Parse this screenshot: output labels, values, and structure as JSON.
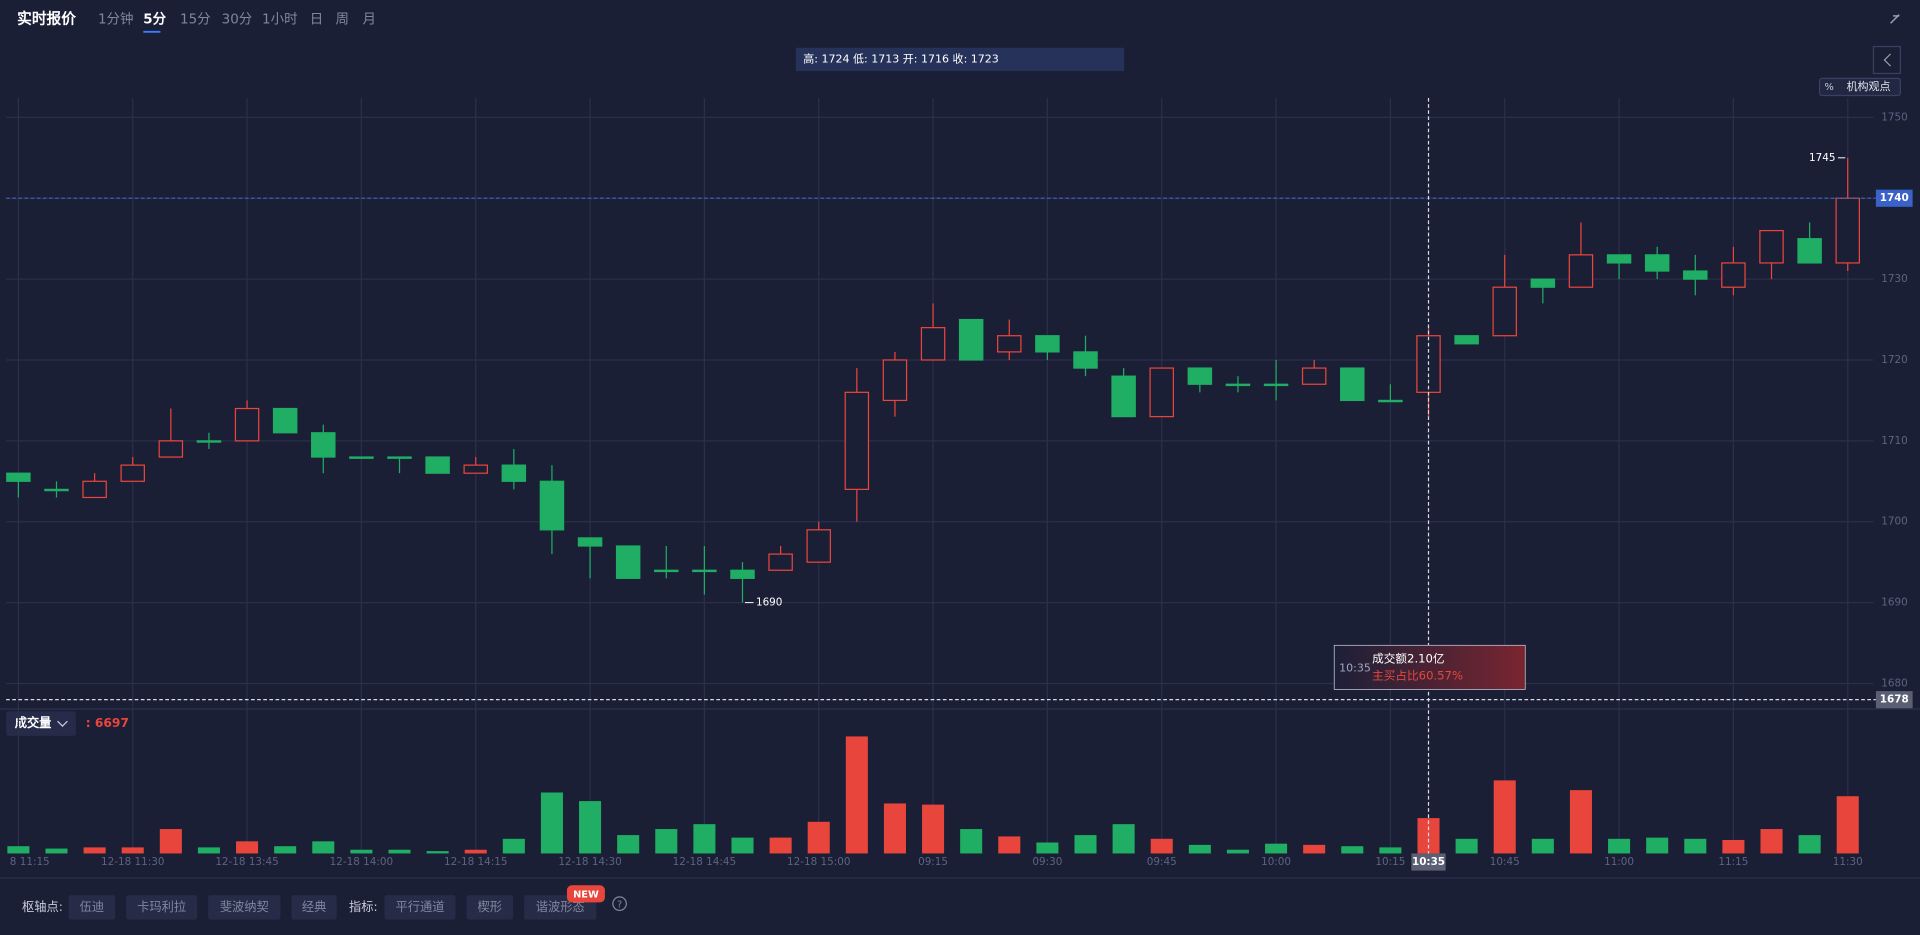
{
  "toolbar": {
    "title": "实时报价",
    "periods": [
      "1分钟",
      "5分",
      "15分",
      "30分",
      "1小时",
      "日",
      "周",
      "月"
    ],
    "active_period": 1
  },
  "ohlc_bar": "高: 1724 低: 1713 开: 1716 收: 1723",
  "opinion_button": {
    "icon": "%",
    "label": "机构观点"
  },
  "volume_header": {
    "title": "成交量",
    "value": ": 6697"
  },
  "volume_tooltip": {
    "amount": "成交额2.10亿",
    "buy_ratio": "主买占比60.57%"
  },
  "bottom_bar": {
    "pivot_label": "枢轴点:",
    "pivots": [
      "伍迪",
      "卡玛利拉",
      "斐波纳契",
      "经典"
    ],
    "indicator_label": "指标:",
    "indicators": [
      "平行通道",
      "楔形",
      "谐波形态"
    ],
    "badge": "NEW",
    "help": "?"
  },
  "chart_data": {
    "type": "candlestick",
    "categories": [
      "8 11:15",
      null,
      null,
      "12-18 11:30",
      null,
      null,
      "12-18 13:45",
      null,
      null,
      "12-18 14:00",
      null,
      null,
      "12-18 14:15",
      null,
      null,
      "12-18 14:30",
      null,
      null,
      "12-18 14:45",
      null,
      null,
      "12-18 15:00",
      null,
      null,
      "09:15",
      null,
      null,
      "09:30",
      null,
      null,
      "09:45",
      null,
      null,
      "10:00",
      null,
      null,
      "10:15",
      "10:35",
      null,
      "10:45",
      null,
      null,
      "11:00",
      null,
      null,
      "11:15",
      null,
      null,
      "11:30"
    ],
    "open": [
      1706,
      1704,
      1703,
      1705,
      1708,
      1710,
      1710,
      1714,
      1711,
      1708,
      1708,
      1708,
      1706,
      1707,
      1705,
      1698,
      1697,
      1694,
      1694,
      1694,
      1694,
      1695,
      1704,
      1715,
      1720,
      1725,
      1721,
      1723,
      1721,
      1718,
      1713,
      1719,
      1717,
      1717,
      1717,
      1719,
      1715,
      1716,
      1723,
      1723,
      1730,
      1729,
      1733,
      1733,
      1731,
      1729,
      1732,
      1735,
      1732
    ],
    "high": [
      1706,
      1705,
      1706,
      1708,
      1714,
      1711,
      1715,
      1714,
      1712,
      1708,
      1708,
      1708,
      1708,
      1709,
      1707,
      1698,
      1697,
      1697,
      1697,
      1695,
      1697,
      1700,
      1719,
      1721,
      1727,
      1725,
      1725,
      1723,
      1723,
      1719,
      1719,
      1719,
      1718,
      1720,
      1720,
      1719,
      1717,
      1724,
      1723,
      1733,
      1730,
      1737,
      1733,
      1734,
      1733,
      1734,
      1736,
      1737,
      1745
    ],
    "low": [
      1703,
      1703,
      1703,
      1705,
      1708,
      1709,
      1710,
      1711,
      1706,
      1708,
      1706,
      1706,
      1706,
      1704,
      1696,
      1693,
      1693,
      1693,
      1691,
      1690,
      1694,
      1695,
      1700,
      1713,
      1720,
      1720,
      1720,
      1720,
      1718,
      1713,
      1713,
      1716,
      1716,
      1715,
      1717,
      1715,
      1715,
      1713,
      1722,
      1723,
      1727,
      1729,
      1730,
      1730,
      1728,
      1728,
      1730,
      1732,
      1731
    ],
    "close": [
      1705,
      1704,
      1705,
      1707,
      1710,
      1710,
      1714,
      1711,
      1708,
      1708,
      1708,
      1706,
      1707,
      1705,
      1699,
      1697,
      1693,
      1694,
      1694,
      1693,
      1696,
      1699,
      1716,
      1720,
      1724,
      1720,
      1723,
      1721,
      1719,
      1713,
      1719,
      1717,
      1717,
      1717,
      1719,
      1715,
      1715,
      1723,
      1722,
      1729,
      1729,
      1733,
      1732,
      1731,
      1730,
      1732,
      1736,
      1732,
      1740
    ],
    "volume": [
      0.43,
      0.29,
      0.36,
      0.36,
      1.45,
      0.36,
      0.72,
      0.43,
      0.72,
      0.22,
      0.22,
      0.14,
      0.22,
      0.87,
      3.62,
      3.11,
      1.09,
      1.45,
      1.74,
      0.94,
      0.94,
      1.88,
      6.95,
      2.97,
      2.9,
      1.45,
      1.01,
      0.65,
      1.09,
      1.74,
      0.87,
      0.51,
      0.22,
      0.58,
      0.51,
      0.43,
      0.36,
      2.1,
      0.87,
      4.34,
      0.87,
      3.76,
      0.87,
      0.94,
      0.87,
      0.8,
      1.45,
      1.09,
      3.4
    ],
    "ylim": [
      1677,
      1752.4
    ],
    "yticks": [
      1680,
      1690,
      1700,
      1710,
      1720,
      1730,
      1740,
      1750
    ],
    "volume_ylim": [
      0,
      7.2
    ],
    "current_price": 1740,
    "crosshair_price": 1678,
    "crosshair_index": 37,
    "max_point": 48,
    "min_point": 19,
    "up_color": "#e8463c",
    "down_color": "#1fae63",
    "grid": true
  }
}
